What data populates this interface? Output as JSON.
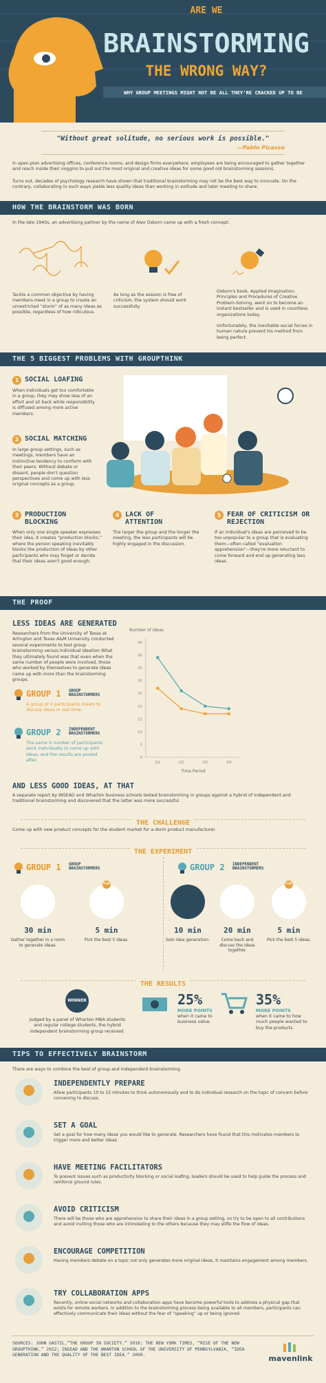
{
  "header": {
    "kicker": "ARE WE",
    "title": "BRAINSTORMING",
    "title2": "THE WRONG WAY?",
    "subtitle": "WHY GROUP MEETINGS MIGHT NOT BE ALL THEY'RE CRACKED UP TO BE"
  },
  "quote": {
    "text": "\"Without great solitude, no serious work is possible.\"",
    "author": "—Pablo Picasso"
  },
  "intro": {
    "p1": "In open-plan advertising offices, conference rooms, and design firms everywhere, employees are being encouraged to gather together and reach inside their noggins to pull out the most original and creative ideas for some good old brainstorming sessions.",
    "p2": "Turns out, decades of psychology research have shown that traditional brainstorming may not be the best way to innovate. On the contrary, collaborating in such ways yields less quality ideas than working in solitude and later meeting to share."
  },
  "born": {
    "title": "HOW THE BRAINSTORM WAS BORN",
    "lead": "In the late 1940s, an advertising partner by the name of Alex Osborn came up with a fresh concept:",
    "col1": "Tackle a common objective by having members meet in a group to create an unrestricted “storm” of as many ideas as possible, regardless of how ridiculous.",
    "col2": "As long as the session is free of criticism, the system should work successfully.",
    "col3": "Osborn's book, Applied Imagination: Principles and Procedures of Creative Problem-Solving, went on to become an instant bestseller and is used in countless organizations today.",
    "col3b": "Unfortunately, the inevitable social forces in human nature prevent his method from being perfect."
  },
  "problems": {
    "title": "THE 5 BIGGEST PROBLEMS WITH GROUPTHINK",
    "items": [
      {
        "number": "1",
        "title": "SOCIAL LOAFING",
        "text": "When individuals get too comfortable in a group, they may show less of an effort and sit back while responsibility is diffused among more active members."
      },
      {
        "number": "2",
        "title": "SOCIAL MATCHING",
        "text": "In large group settings, such as meetings, members have an instinctive tendency to conform with their peers. Without debate or dissent, people don't question perspectives and come up with less original concepts as a group."
      },
      {
        "number": "3",
        "title": "PRODUCTION BLOCKING",
        "text": "When only one single speaker expresses their idea, it creates “production blocks,” where the person speaking inevitably blocks the production of ideas by other participants who may forget or decide that their ideas aren't good enough."
      },
      {
        "number": "4",
        "title": "LACK OF ATTENTION",
        "text": "The larger the group and the longer the meeting, the less participants will be highly engaged in the discussion."
      },
      {
        "number": "5",
        "title": "FEAR OF CRITICISM OR REJECTION",
        "text": "If an individual's ideas are perceived to be too unpopular to a group that is evaluating them—often called “evaluation apprehension”—they're more reluctant to come forward and end up generating less ideas."
      }
    ]
  },
  "proof": {
    "title": "THE PROOF",
    "heading": "LESS IDEAS ARE GENERATED",
    "text": "Researchers from the University of Texas at Arlington and Texas A&M University conducted several experiments to test group brainstorming versus individual ideation What they ultimately found was that even when the same number of people were involved, those who worked by themselves to generate ideas came up with more than the brainstorming groups.",
    "group1": {
      "label": "GROUP 1",
      "kind": "GROUP BRAINSTORMERS",
      "text": "A group of X participants meets to discuss ideas in real time."
    },
    "group2": {
      "label": "GROUP 2",
      "kind": "INDEPENDENT BRAINSTORMERS",
      "text": "The same X number of participants work individually to come up with ideas, and the results are pooled after."
    },
    "chart": {
      "type": "line",
      "y_label": "Number of Ideas",
      "x_label": "Time Period",
      "categories": [
        "Q1",
        "Q2",
        "Q3",
        "Q4"
      ],
      "series": [
        {
          "color": "#f0a23a",
          "values": [
            27,
            19,
            17,
            17
          ]
        },
        {
          "color": "#5aa9b4",
          "values": [
            39,
            26,
            20,
            19
          ]
        }
      ],
      "ylim": [
        0,
        45
      ],
      "yticks": [
        0,
        5,
        10,
        15,
        20,
        25,
        30,
        35,
        40,
        45
      ],
      "grid": false
    }
  },
  "less_good": {
    "heading": "AND LESS GOOD IDEAS, AT THAT",
    "text": "A separate report by INSEAD and Wharton business schools tested brainstorming in groups against a hybrid of independent and traditional brainstorming and discovered that the latter was more successful."
  },
  "challenge": {
    "title": "THE CHALLENGE",
    "text": "Come up with new product concepts for the student market for a dorm product manufacturer."
  },
  "experiment": {
    "title": "THE EXPERIMENT",
    "top_badge": "TOP",
    "group1": {
      "label": "GROUP 1",
      "kind": "GROUP BRAINSTORMERS",
      "steps": [
        {
          "time": "30 min",
          "text": "Gather together in a room to generate ideas."
        },
        {
          "time": "5 min",
          "text": "Pick the best 5 ideas."
        }
      ]
    },
    "group2": {
      "label": "GROUP 2",
      "kind": "INDEPENDENT BRAINSTORMERS",
      "steps": [
        {
          "time": "10 min",
          "text": "Solo idea generation."
        },
        {
          "time": "20 min",
          "text": "Come back and discuss the ideas together."
        },
        {
          "time": "5 min",
          "text": "Pick the best 5 ideas."
        }
      ]
    }
  },
  "results": {
    "title": "THE RESULTS",
    "badge": "WINNER",
    "text": "Judged by a panel of Wharton MBA students and regular college students, the hybrid independent brainstorming group received:",
    "items": [
      {
        "value": "25%",
        "label": "MORE POINTS",
        "text": "when it came to business value."
      },
      {
        "value": "35%",
        "label": "MORE POINTS",
        "text": "when it came to how much people wanted to buy the products."
      }
    ]
  },
  "tips": {
    "title": "TIPS TO EFFECTIVELY BRAINSTORM",
    "intro": "There are ways to combine the best of group and independent brainstorming.",
    "items": [
      {
        "title": "INDEPENDENTLY PREPARE",
        "text": "Allow participants 10 to 15 minutes to think autonomously and to do individual research on the topic of concern before convening to discuss."
      },
      {
        "title": "SET A GOAL",
        "text": "Set a goal for how many ideas you would like to generate. Researchers have found that this motivates members to trigger more and better ideas."
      },
      {
        "title": "HAVE MEETING FACILITATORS",
        "text": "To prevent issues such as productivity blocking or social loafing, leaders should be used to help guide the process and reinforce ground rules."
      },
      {
        "title": "AVOID CRITICISM",
        "text": "There will be those who are apprehensive to share their ideas in a group setting, so try to be open to all contributions and avoid inviting those who are intimidating to the others because they may stifle the flow of ideas."
      },
      {
        "title": "ENCOURAGE COMPETITION",
        "text": "Having members debate on a topic not only generates more original ideas, it maintains engagement among members."
      },
      {
        "title": "TRY COLLABORATION APPS",
        "text": "Recently, online social networks and collaboration apps have become powerful tools to address a physical gap that exists for remote workers. In addition to the brainstorming process being available to all members, participants can effectively communicate their ideas without the fear of “speaking” up or being ignored."
      }
    ]
  },
  "footer": {
    "sources": "SOURCES: JOHN GASTIL,“THE GROUP IN SOCIETY.” 2010; THE NEW YORK TIMES, “RISE OF THE NEW GROUPTHINK.” 2012; INSEAD AND THE WHARTON SCHOOL OF THE UNIVERSITY OF PENNSYLVANIA, “IDEA GENERATION AND THE QUALITY OF THE BEST IDEA.” 2009.",
    "brand": "mavenlink"
  }
}
